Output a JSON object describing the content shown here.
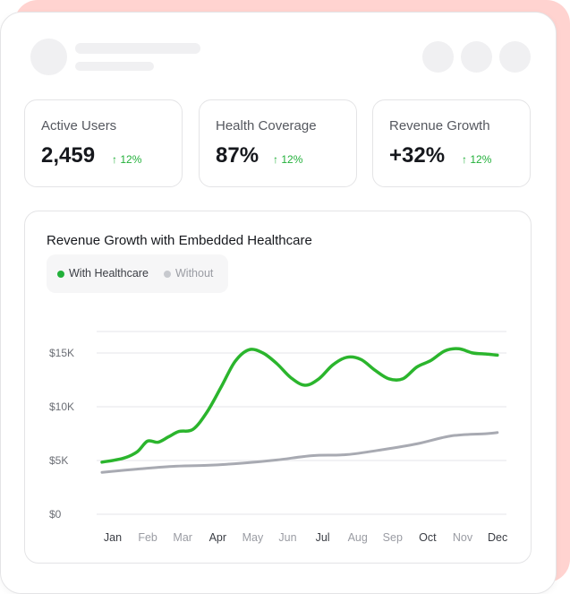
{
  "stats": [
    {
      "label": "Active Users",
      "value": "2,459",
      "change": "12%"
    },
    {
      "label": "Health Coverage",
      "value": "87%",
      "change": "12%"
    },
    {
      "label": "Revenue Growth",
      "value": "+32%",
      "change": "12%"
    }
  ],
  "colors": {
    "positive": "#22b03a",
    "with_line": "#2bb52d",
    "without_line": "#a8aab2",
    "accent_bg": "#ffd3d0"
  },
  "chart_data": {
    "type": "line",
    "title": "Revenue Growth with Embedded Healthcare",
    "categories": [
      "Jan",
      "Feb",
      "Mar",
      "Apr",
      "May",
      "Jun",
      "Jul",
      "Aug",
      "Sep",
      "Oct",
      "Nov",
      "Dec"
    ],
    "x_labels_active": [
      true,
      false,
      false,
      true,
      false,
      false,
      true,
      false,
      false,
      true,
      false,
      true
    ],
    "yticks": [
      "$0",
      "$5K",
      "$10K",
      "$15K"
    ],
    "ylim": [
      0,
      17000
    ],
    "legend": [
      {
        "name": "With Healthcare",
        "active": true
      },
      {
        "name": "Without",
        "active": false
      }
    ],
    "legend_position": "top-left",
    "grid": true,
    "series": [
      {
        "name": "With Healthcare",
        "x": [
          0,
          0.6,
          1.0,
          1.3,
          1.6,
          1.9,
          2.2,
          2.6,
          3.0,
          3.4,
          3.8,
          4.2,
          4.6,
          5.0,
          5.4,
          5.8,
          6.2,
          6.6,
          7.0,
          7.4,
          7.8,
          8.2,
          8.6,
          9.0,
          9.4,
          9.8,
          10.2,
          10.6,
          11.0,
          11.3
        ],
        "values": [
          4850,
          5200,
          5800,
          6800,
          6700,
          7200,
          7700,
          7900,
          9500,
          11800,
          14200,
          15300,
          15000,
          14000,
          12700,
          12000,
          12600,
          13900,
          14600,
          14400,
          13400,
          12600,
          12600,
          13700,
          14300,
          15200,
          15400,
          15000,
          14900,
          14800
        ]
      },
      {
        "name": "Without",
        "x": [
          0,
          1,
          2,
          3,
          4,
          5,
          6,
          7,
          8,
          9,
          10,
          11,
          11.3
        ],
        "values": [
          3900,
          4200,
          4450,
          4550,
          4750,
          5050,
          5450,
          5550,
          6000,
          6550,
          7300,
          7500,
          7600
        ]
      }
    ]
  }
}
